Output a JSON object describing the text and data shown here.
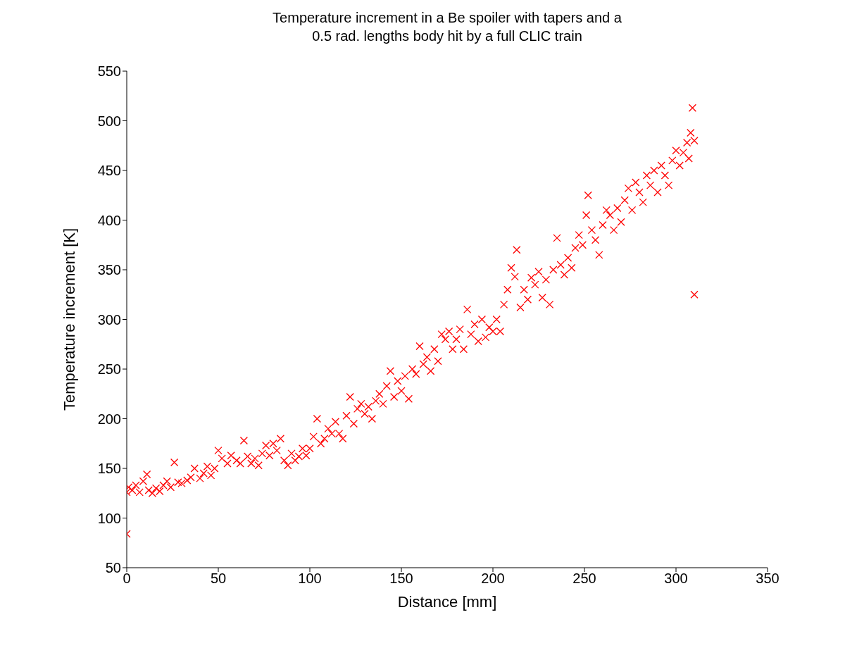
{
  "chart_data": {
    "type": "scatter",
    "title": "Temperature increment in a Be spoiler with tapers and a\n0.5 rad. lengths body hit by a full CLIC train",
    "xlabel": "Distance [mm]",
    "ylabel": "Temperature increment [K]",
    "xlim": [
      0,
      350
    ],
    "xticks": [
      0,
      50,
      100,
      150,
      200,
      250,
      300,
      350
    ],
    "ylim": [
      50,
      550
    ],
    "yticks": [
      50,
      100,
      150,
      200,
      250,
      300,
      350,
      400,
      450,
      500,
      550
    ],
    "grid": false,
    "legend": false,
    "marker": "cross",
    "series": [
      {
        "color": "#ff0000",
        "x": [
          0,
          0,
          1,
          3,
          5,
          7,
          9,
          11,
          12,
          14,
          16,
          18,
          20,
          22,
          24,
          26,
          28,
          30,
          33,
          35,
          37,
          40,
          42,
          44,
          46,
          48,
          50,
          52,
          55,
          57,
          60,
          62,
          64,
          66,
          68,
          70,
          72,
          74,
          76,
          78,
          80,
          82,
          84,
          86,
          88,
          90,
          92,
          94,
          96,
          98,
          100,
          102,
          104,
          106,
          108,
          110,
          112,
          114,
          116,
          118,
          120,
          122,
          124,
          126,
          128,
          130,
          132,
          134,
          136,
          138,
          140,
          142,
          144,
          146,
          148,
          150,
          152,
          154,
          156,
          158,
          160,
          162,
          164,
          166,
          168,
          170,
          172,
          174,
          176,
          178,
          180,
          182,
          184,
          186,
          188,
          190,
          192,
          194,
          196,
          198,
          200,
          202,
          204,
          206,
          208,
          210,
          212,
          213,
          215,
          217,
          219,
          221,
          223,
          225,
          227,
          229,
          231,
          233,
          235,
          237,
          239,
          241,
          243,
          245,
          247,
          249,
          251,
          252,
          254,
          256,
          258,
          260,
          262,
          264,
          266,
          268,
          270,
          272,
          274,
          276,
          278,
          280,
          282,
          284,
          286,
          288,
          290,
          292,
          294,
          296,
          298,
          300,
          302,
          304,
          306,
          307,
          308,
          309,
          310,
          310
        ],
        "values": [
          84,
          126,
          131,
          128,
          133,
          126,
          137,
          144,
          128,
          125,
          130,
          127,
          133,
          137,
          131,
          156,
          136,
          135,
          138,
          141,
          150,
          140,
          145,
          152,
          143,
          150,
          168,
          160,
          155,
          163,
          158,
          155,
          178,
          162,
          155,
          160,
          153,
          165,
          173,
          163,
          175,
          168,
          180,
          158,
          153,
          165,
          158,
          162,
          170,
          163,
          170,
          182,
          200,
          175,
          180,
          190,
          185,
          197,
          185,
          180,
          203,
          222,
          195,
          210,
          215,
          205,
          212,
          200,
          218,
          225,
          215,
          233,
          248,
          222,
          238,
          228,
          243,
          220,
          250,
          245,
          273,
          255,
          262,
          248,
          270,
          258,
          285,
          280,
          288,
          270,
          280,
          290,
          270,
          310,
          285,
          295,
          278,
          300,
          282,
          292,
          288,
          300,
          288,
          315,
          330,
          352,
          343,
          370,
          312,
          330,
          320,
          342,
          335,
          348,
          322,
          340,
          315,
          350,
          382,
          355,
          345,
          362,
          352,
          372,
          385,
          375,
          405,
          425,
          390,
          380,
          365,
          395,
          410,
          405,
          390,
          412,
          398,
          420,
          432,
          410,
          438,
          428,
          418,
          445,
          435,
          450,
          428,
          455,
          445,
          435,
          460,
          470,
          455,
          468,
          478,
          462,
          488,
          513,
          325,
          480
        ]
      }
    ]
  }
}
